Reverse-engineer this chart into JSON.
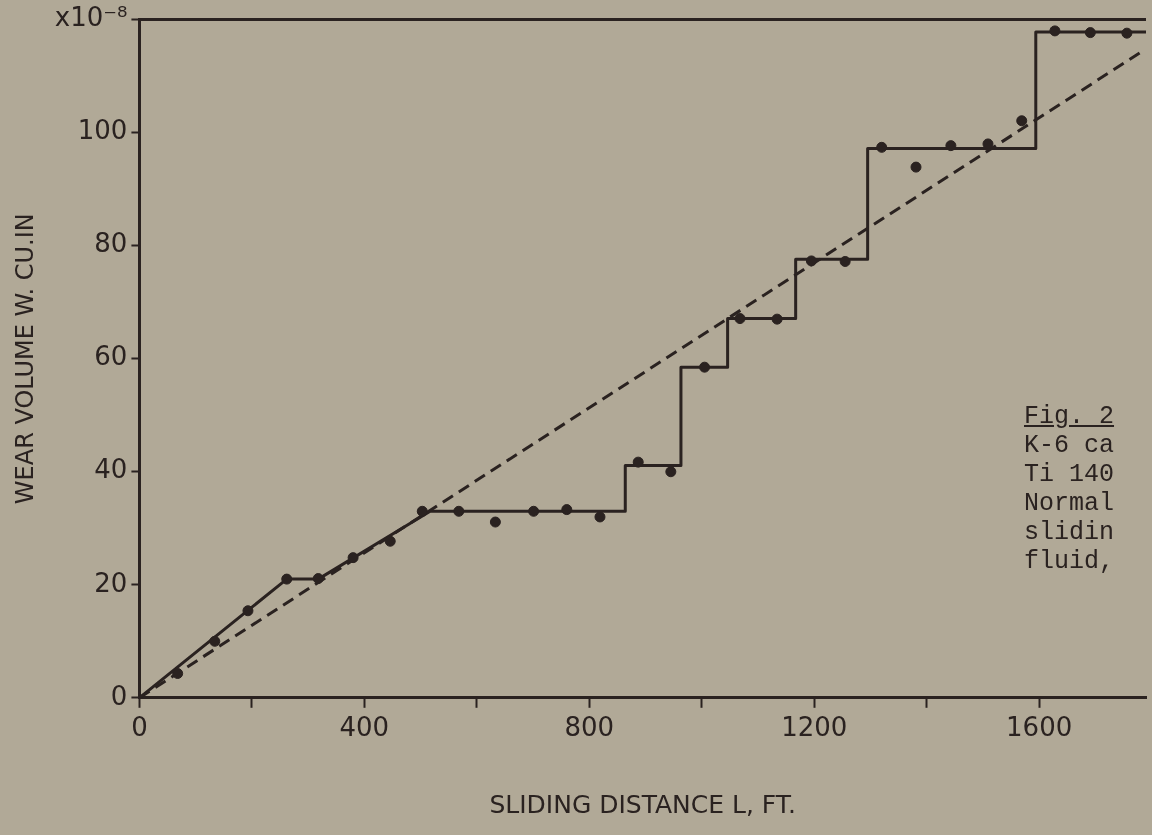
{
  "chart_data": {
    "type": "scatter",
    "xlabel": "SLIDING DISTANCE L, FT.",
    "ylabel": "WEAR VOLUME W. CU.IN",
    "xlim": [
      0,
      1790
    ],
    "ylim": [
      0,
      120
    ],
    "xticks": [
      0,
      {
        "value": 200,
        "label": null
      },
      400,
      {
        "value": 600,
        "label": null
      },
      800,
      {
        "value": 1000,
        "label": null
      },
      1200,
      {
        "value": 1400,
        "label": null
      },
      1600
    ],
    "yticks": [
      0,
      20,
      40,
      60,
      80,
      100,
      {
        "value": 120,
        "label": "x10⁻⁸"
      }
    ],
    "grid": false,
    "legend": false,
    "annotations": [
      "Fig. 2",
      "K-6 ca",
      "Ti 140",
      "Normal",
      "slidin",
      "fluid,"
    ],
    "series": [
      {
        "type": "scatter",
        "marker": "circle",
        "color": "#2a2220",
        "x": [
          68,
          134,
          193,
          262,
          318,
          380,
          446,
          503,
          568,
          633,
          701,
          760,
          819,
          887,
          945,
          1005,
          1068,
          1134,
          1195,
          1255,
          1320,
          1381,
          1443,
          1509,
          1569,
          1628,
          1691,
          1756
        ],
        "values": [
          4.3,
          10,
          15.4,
          21,
          21.1,
          24.8,
          27.7,
          33,
          33,
          31.1,
          33,
          33.3,
          32,
          41.7,
          40,
          58.5,
          67.1,
          67,
          77.3,
          77.2,
          97.4,
          93.9,
          97.7,
          98,
          102.1,
          118,
          117.7,
          117.6
        ]
      },
      {
        "type": "line",
        "marker": "none",
        "line_style": "solid",
        "color": "#2a2220",
        "x": [
          0,
          262,
          318,
          517,
          864,
          864,
          963,
          963,
          1046,
          1046,
          1167,
          1167,
          1295,
          1295,
          1594,
          1594,
          1790
        ],
        "values": [
          0,
          21,
          21,
          33,
          33,
          41.1,
          41.1,
          58.5,
          58.5,
          67.1,
          67.1,
          77.6,
          77.6,
          97.2,
          97.2,
          117.8,
          117.8
        ]
      },
      {
        "type": "line",
        "marker": "none",
        "line_style": "dashed",
        "color": "#2a2220",
        "x": [
          0,
          1785
        ],
        "values": [
          0,
          114.5
        ]
      }
    ]
  }
}
